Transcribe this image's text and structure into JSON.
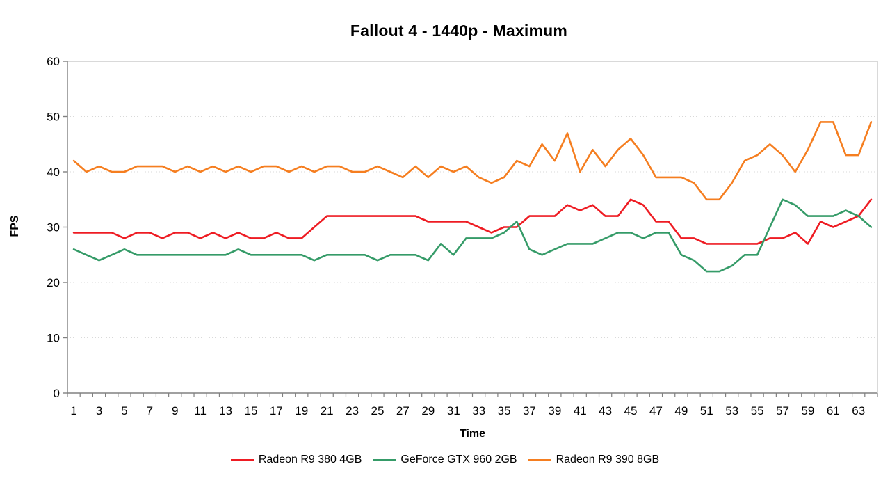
{
  "title": "Fallout 4 - 1440p - Maximum",
  "chart_data": {
    "type": "line",
    "title": "Fallout 4 - 1440p - Maximum",
    "xlabel": "Time",
    "ylabel": "FPS",
    "ylim": [
      0,
      60
    ],
    "ytick_step": 10,
    "y_tick_labels": [
      "0",
      "10",
      "20",
      "30",
      "40",
      "50",
      "60"
    ],
    "x_tick_labels": [
      "1",
      "3",
      "5",
      "7",
      "9",
      "11",
      "13",
      "15",
      "17",
      "19",
      "21",
      "23",
      "25",
      "27",
      "29",
      "31",
      "33",
      "35",
      "37",
      "39",
      "41",
      "43",
      "45",
      "47",
      "49",
      "51",
      "53",
      "55",
      "57",
      "59",
      "61",
      "63"
    ],
    "categories": [
      1,
      2,
      3,
      4,
      5,
      6,
      7,
      8,
      9,
      10,
      11,
      12,
      13,
      14,
      15,
      16,
      17,
      18,
      19,
      20,
      21,
      22,
      23,
      24,
      25,
      26,
      27,
      28,
      29,
      30,
      31,
      32,
      33,
      34,
      35,
      36,
      37,
      38,
      39,
      40,
      41,
      42,
      43,
      44,
      45,
      46,
      47,
      48,
      49,
      50,
      51,
      52,
      53,
      54,
      55,
      56,
      57,
      58,
      59,
      60,
      61,
      62,
      63,
      64
    ],
    "grid": "horizontal-dotted",
    "legend_position": "bottom",
    "series": [
      {
        "name": "Radeon R9 380 4GB",
        "color": "#ee1c23",
        "values": [
          29,
          29,
          29,
          29,
          28,
          29,
          29,
          28,
          29,
          29,
          28,
          29,
          28,
          29,
          28,
          28,
          29,
          28,
          28,
          30,
          32,
          32,
          32,
          32,
          32,
          32,
          32,
          32,
          31,
          31,
          31,
          31,
          30,
          29,
          30,
          30,
          32,
          32,
          32,
          34,
          33,
          34,
          32,
          32,
          35,
          34,
          31,
          31,
          28,
          28,
          27,
          27,
          27,
          27,
          27,
          28,
          28,
          29,
          27,
          31,
          30,
          31,
          32,
          35
        ]
      },
      {
        "name": "GeForce GTX 960 2GB",
        "color": "#359b68",
        "values": [
          26,
          25,
          24,
          25,
          26,
          25,
          25,
          25,
          25,
          25,
          25,
          25,
          25,
          26,
          25,
          25,
          25,
          25,
          25,
          24,
          25,
          25,
          25,
          25,
          24,
          25,
          25,
          25,
          24,
          27,
          25,
          28,
          28,
          28,
          29,
          31,
          26,
          25,
          26,
          27,
          27,
          27,
          28,
          29,
          29,
          28,
          29,
          29,
          25,
          24,
          22,
          22,
          23,
          25,
          25,
          30,
          35,
          34,
          32,
          32,
          32,
          33,
          32,
          30
        ]
      },
      {
        "name": "Radeon R9 390 8GB",
        "color": "#f57e20",
        "values": [
          42,
          40,
          41,
          40,
          40,
          41,
          41,
          41,
          40,
          41,
          40,
          41,
          40,
          41,
          40,
          41,
          41,
          40,
          41,
          40,
          41,
          41,
          40,
          40,
          41,
          40,
          39,
          41,
          39,
          41,
          40,
          41,
          39,
          38,
          39,
          42,
          41,
          45,
          42,
          47,
          40,
          44,
          41,
          44,
          46,
          43,
          39,
          39,
          39,
          38,
          35,
          35,
          38,
          42,
          43,
          45,
          43,
          40,
          44,
          49,
          49,
          43,
          43,
          49
        ]
      }
    ]
  },
  "style": {
    "gridline_color": "#d9d9d9",
    "axis_color": "#808080",
    "border_color": "#b3b3b3",
    "background": "#ffffff",
    "text_color": "#000000"
  }
}
